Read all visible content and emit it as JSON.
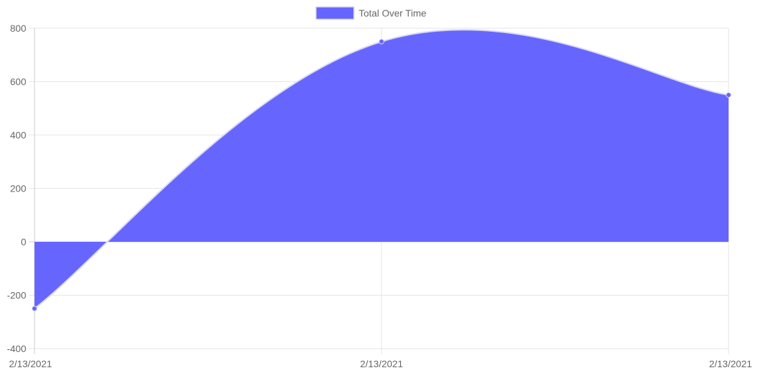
{
  "chart_data": {
    "type": "area",
    "title": "",
    "xlabel": "",
    "ylabel": "",
    "categories": [
      "2/13/2021",
      "2/13/2021",
      "2/13/2021"
    ],
    "series": [
      {
        "name": "Total Over Time",
        "values": [
          -250,
          750,
          550
        ]
      }
    ],
    "ylim": [
      -400,
      800
    ],
    "yticks": [
      "800",
      "600",
      "400",
      "200",
      "0",
      "-200",
      "-400"
    ],
    "grid": true,
    "legend_position": "top-center",
    "colors": {
      "fill": "#6666ff",
      "line": "#d9d9f2",
      "point": "#6666ff",
      "grid": "#e5e5e5",
      "zero_line": "#cccccc"
    }
  }
}
